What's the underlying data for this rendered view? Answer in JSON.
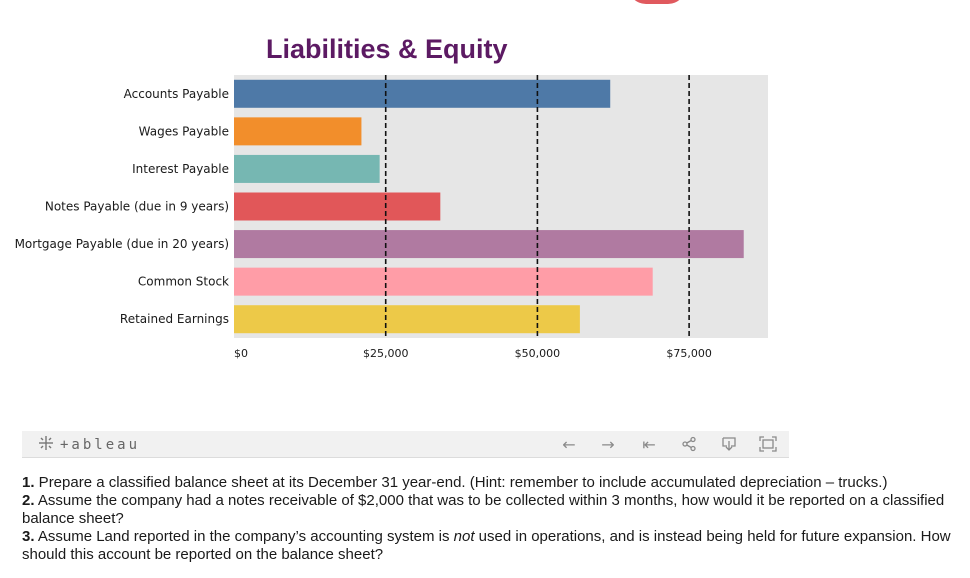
{
  "chart_data": {
    "type": "bar",
    "orientation": "horizontal",
    "title": "Liabilities & Equity",
    "categories": [
      "Accounts Payable",
      "Wages Payable",
      "Interest Payable",
      "Notes Payable (due in 9 years)",
      "Mortgage Payable (due in 20 years)",
      "Common Stock",
      "Retained Earnings"
    ],
    "values": [
      62000,
      21000,
      24000,
      34000,
      84000,
      69000,
      57000
    ],
    "colors": [
      "#4e79a7",
      "#f28e2b",
      "#76b7b2",
      "#e15759",
      "#b07aa1",
      "#ff9da7",
      "#edc948"
    ],
    "xlim": [
      0,
      88000
    ],
    "x_ticks": [
      0,
      25000,
      50000,
      75000
    ],
    "x_tick_labels": [
      "$0",
      "$25,000",
      "$50,000",
      "$75,000"
    ],
    "reference_lines": [
      25000,
      50000,
      75000
    ],
    "xlabel": "",
    "ylabel": "",
    "grid": false
  },
  "toolbar": {
    "logo_text": "+ableau",
    "logo_icon": "tableau-cross-icon",
    "undo_icon": "undo-icon",
    "redo_icon": "redo-icon",
    "revert_icon": "revert-icon",
    "share_icon": "share-icon",
    "download_icon": "download-icon",
    "fullscreen_icon": "fullscreen-icon"
  },
  "questions": {
    "q1": {
      "num": "1.",
      "text": " Prepare a classified balance sheet at its December 31 year-end. (Hint: remember to include accumulated depreciation – trucks.)"
    },
    "q2": {
      "num": "2.",
      "text": " Assume the company had a notes receivable of $2,000 that was to be collected within 3 months, how would it be reported on a classified balance sheet?"
    },
    "q3": {
      "num": "3.",
      "text_before": " Assume Land reported in the company’s accounting system is ",
      "emphasis": "not",
      "text_after": " used in operations, and is instead being held for future expansion. How should this account be reported on the balance sheet?"
    }
  }
}
